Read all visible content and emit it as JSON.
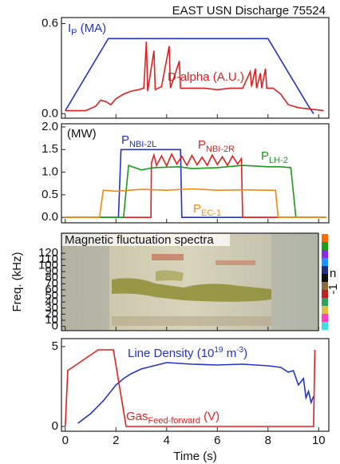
{
  "chart_data": [
    {
      "type": "line",
      "title": "EAST USN Discharge 75524",
      "xlim": [
        -0.15,
        10.4
      ],
      "ylim": [
        -0.03,
        0.64
      ],
      "yticks": [
        {
          "value": 0,
          "label": "0.0"
        },
        0.6
      ],
      "series": [
        {
          "label": [
            {
              "text": "I"
            },
            {
              "text": "P",
              "sub": true
            },
            {
              "text": " (MA)"
            }
          ],
          "color": "#2233cc",
          "x": [
            0,
            1.7,
            8.0,
            9.6,
            9.8
          ],
          "values": [
            0.02,
            0.5,
            0.5,
            0.05,
            0
          ]
        },
        {
          "label": [
            {
              "text": "D-alpha (A.U.)"
            }
          ],
          "color": "#e02020",
          "x": [
            0,
            0.8,
            1.2,
            1.4,
            1.6,
            1.8,
            2.0,
            2.3,
            2.6,
            2.9,
            3.1,
            3.2,
            3.25,
            3.5,
            3.55,
            3.8,
            4.1,
            4.15,
            4.5,
            4.55,
            5.0,
            5.5,
            6.0,
            6.5,
            7.0,
            7.3,
            7.35,
            7.5,
            7.55,
            7.7,
            7.75,
            7.9,
            7.95,
            8.2,
            8.5,
            8.8,
            9.2,
            9.7,
            10.2
          ],
          "values": [
            0.02,
            0.02,
            0.05,
            0.09,
            0.08,
            0.06,
            0.1,
            0.13,
            0.15,
            0.16,
            0.17,
            0.48,
            0.15,
            0.42,
            0.16,
            0.18,
            0.45,
            0.17,
            0.35,
            0.17,
            0.17,
            0.17,
            0.16,
            0.17,
            0.17,
            0.28,
            0.18,
            0.3,
            0.17,
            0.27,
            0.17,
            0.3,
            0.17,
            0.17,
            0.13,
            0.06,
            0.04,
            0.03,
            0.02
          ]
        }
      ]
    },
    {
      "type": "line",
      "unit_label": "(MW)",
      "xlim": [
        -0.15,
        10.4
      ],
      "ylim": [
        -0.12,
        2.07
      ],
      "yticks": [
        {
          "value": 0,
          "label": "0.0"
        },
        0.5,
        {
          "value": 1,
          "label": "1.0"
        },
        1.5,
        {
          "value": 2,
          "label": "2.0"
        }
      ],
      "series": [
        {
          "label": [
            {
              "text": "P"
            },
            {
              "text": "NBI-2L",
              "sub": true
            }
          ],
          "color": "#2233cc",
          "x": [
            0,
            2.1,
            2.2,
            4.55,
            4.6,
            10.3
          ],
          "values": [
            0,
            0,
            1.5,
            1.5,
            0,
            0
          ]
        },
        {
          "label": [
            {
              "text": "P"
            },
            {
              "text": "NBI-2R",
              "sub": true
            }
          ],
          "color": "#e02020",
          "x": [
            0,
            3.38,
            3.4,
            3.5,
            3.6,
            3.8,
            4.0,
            4.2,
            4.4,
            4.6,
            4.8,
            5.0,
            5.2,
            5.4,
            5.6,
            5.8,
            6.0,
            6.2,
            6.4,
            6.6,
            6.8,
            6.95,
            7.0,
            10.3
          ],
          "values": [
            0,
            0,
            1.2,
            1.38,
            1.15,
            1.36,
            1.14,
            1.4,
            1.18,
            1.35,
            1.15,
            1.37,
            1.16,
            1.33,
            1.15,
            1.38,
            1.17,
            1.34,
            1.15,
            1.36,
            1.18,
            1.3,
            0,
            0
          ]
        },
        {
          "label": [
            {
              "text": "P"
            },
            {
              "text": "LH-2",
              "sub": true
            }
          ],
          "color": "#1a9a1a",
          "x": [
            0,
            2.3,
            2.5,
            3.0,
            3.5,
            4.5,
            5.0,
            6.0,
            7.0,
            8.0,
            8.5,
            8.9,
            9.1,
            10.3
          ],
          "values": [
            0,
            0,
            1.15,
            1.05,
            1.1,
            1.12,
            1.08,
            1.1,
            1.15,
            1.12,
            1.12,
            1.1,
            0,
            0
          ]
        },
        {
          "label": [
            {
              "text": "P"
            },
            {
              "text": "EC-1",
              "sub": true
            }
          ],
          "color": "#f08a10",
          "x": [
            0,
            1.35,
            1.5,
            2.0,
            3.0,
            4.0,
            5.0,
            6.0,
            7.0,
            8.0,
            8.3,
            8.4,
            10.3
          ],
          "values": [
            0,
            0,
            0.6,
            0.58,
            0.62,
            0.6,
            0.63,
            0.6,
            0.61,
            0.6,
            0.6,
            0,
            0
          ]
        }
      ]
    },
    {
      "type": "spectrogram",
      "title": "Magnetic fluctuation spectra",
      "ylabel": "Freq. (kHz)",
      "xlim": [
        -0.15,
        10.4
      ],
      "ylim": [
        -7,
        153
      ],
      "yticks": [
        0,
        10,
        20,
        30,
        40,
        50,
        60,
        70,
        80,
        90,
        100,
        110,
        120
      ],
      "colorbar_label_fragments": [
        "n",
        "-1"
      ]
    },
    {
      "type": "line",
      "xlabel": "Time (s)",
      "xlim": [
        -0.15,
        10.4
      ],
      "ylim": [
        -0.3,
        5.5
      ],
      "xticks": [
        0,
        2,
        4,
        6,
        8,
        10
      ],
      "yticks": [
        0,
        5
      ],
      "series": [
        {
          "label": [
            {
              "text": "Line Density (10"
            },
            {
              "text": "19",
              "sup": true
            },
            {
              "text": " m"
            },
            {
              "text": "-3",
              "sup": true
            },
            {
              "text": ")"
            }
          ],
          "color": "#2233cc",
          "x": [
            0.5,
            1.0,
            1.5,
            2.0,
            2.3,
            2.6,
            3.0,
            3.5,
            4.0,
            5.0,
            6.0,
            7.0,
            8.0,
            8.5,
            8.8,
            9.0,
            9.2,
            9.4,
            9.5,
            9.6,
            9.7,
            9.8
          ],
          "values": [
            0.2,
            0.8,
            1.6,
            2.6,
            3.0,
            3.3,
            3.6,
            3.8,
            4.0,
            3.9,
            3.85,
            3.9,
            3.8,
            3.7,
            3.4,
            3.5,
            2.6,
            3.0,
            1.8,
            2.2,
            1.5,
            1.9
          ]
        },
        {
          "label": [
            {
              "text": "Gas"
            },
            {
              "text": "Feed-forward",
              "sub": true
            },
            {
              "text": " (V)"
            }
          ],
          "color": "#e02020",
          "x": [
            0,
            0.1,
            1.3,
            1.9,
            2.4,
            9.8,
            9.85
          ],
          "values": [
            0,
            3.5,
            4.8,
            4.8,
            0,
            0,
            4.8
          ]
        }
      ]
    }
  ]
}
